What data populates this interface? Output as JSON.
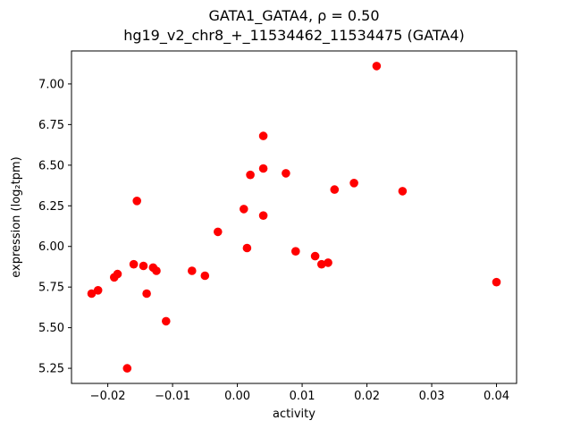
{
  "title": {
    "line1": "GATA1_GATA4, ρ = 0.50",
    "line2": "hg19_v2_chr8_+_11534462_11534475 (GATA4)"
  },
  "chart_data": {
    "type": "scatter",
    "title_line1": "GATA1_GATA4, ρ = 0.50",
    "title_line2": "hg19_v2_chr8_+_11534462_11534475 (GATA4)",
    "xlabel": "activity",
    "ylabel": "expression (log₂tpm)",
    "xlim": [
      -0.0256,
      0.0431
    ],
    "ylim": [
      5.157,
      7.203
    ],
    "xticks": [
      -0.02,
      -0.01,
      0.0,
      0.01,
      0.02,
      0.03,
      0.04
    ],
    "yticks": [
      5.25,
      5.5,
      5.75,
      6.0,
      6.25,
      6.5,
      6.75,
      7.0
    ],
    "grid": false,
    "legend": "none",
    "marker_color": "#ff0000",
    "points": [
      [
        -0.0225,
        5.71
      ],
      [
        -0.0215,
        5.73
      ],
      [
        -0.019,
        5.81
      ],
      [
        -0.0185,
        5.83
      ],
      [
        -0.017,
        5.25
      ],
      [
        -0.016,
        5.89
      ],
      [
        -0.0155,
        6.28
      ],
      [
        -0.0145,
        5.88
      ],
      [
        -0.014,
        5.71
      ],
      [
        -0.013,
        5.87
      ],
      [
        -0.0125,
        5.85
      ],
      [
        -0.011,
        5.54
      ],
      [
        -0.007,
        5.85
      ],
      [
        -0.005,
        5.82
      ],
      [
        -0.003,
        6.09
      ],
      [
        0.001,
        6.23
      ],
      [
        0.0015,
        5.99
      ],
      [
        0.002,
        6.44
      ],
      [
        0.004,
        6.68
      ],
      [
        0.004,
        6.48
      ],
      [
        0.004,
        6.19
      ],
      [
        0.0075,
        6.45
      ],
      [
        0.009,
        5.97
      ],
      [
        0.012,
        5.94
      ],
      [
        0.013,
        5.89
      ],
      [
        0.014,
        5.9
      ],
      [
        0.015,
        6.35
      ],
      [
        0.018,
        6.39
      ],
      [
        0.0215,
        7.11
      ],
      [
        0.0255,
        6.34
      ],
      [
        0.04,
        5.78
      ]
    ]
  }
}
